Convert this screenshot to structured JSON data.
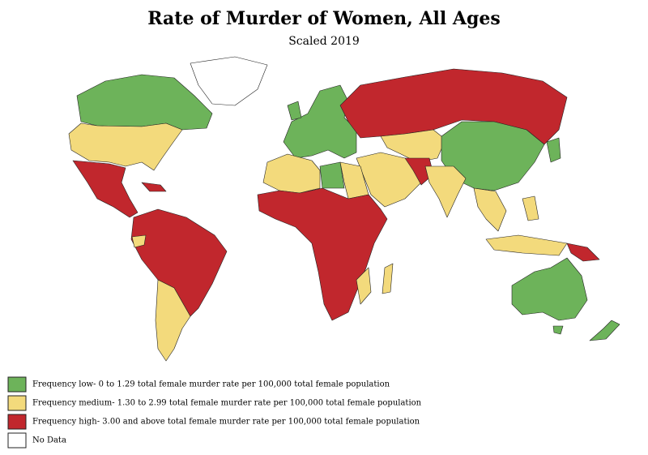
{
  "title": "Rate of Murder of Women, All Ages",
  "subtitle": "Scaled 2019",
  "legend": [
    {
      "label": "Frequency low- 0 to 1.29 total female murder rate per 100,000 total female population",
      "color": "#6db35a"
    },
    {
      "label": "Frequency medium- 1.30 to 2.99 total female murder rate per 100,000 total female population",
      "color": "#f3da7c"
    },
    {
      "label": "Frequency high- 3.00 and above total female murder rate per 100,000 total female population",
      "color": "#c1272d"
    },
    {
      "label": "No Data",
      "color": "#ffffff"
    }
  ]
}
